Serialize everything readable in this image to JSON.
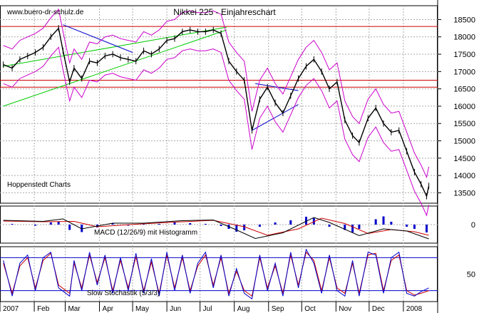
{
  "watermark": "www.buero-dr-schulz.de",
  "chart_data": {
    "type": "line",
    "title": "Nikkei 225 - Einjahreschart",
    "source_label": "Hoppenstedt Charts",
    "xlabel": "",
    "ylabel": "",
    "months": [
      "2007",
      "Feb",
      "Mar",
      "Apr",
      "May",
      "Jun",
      "Jul",
      "Aug",
      "Sep",
      "Oct",
      "Nov",
      "Dec",
      "2008"
    ],
    "grid": true,
    "colors": {
      "price": "#000000",
      "bollinger": "#cc00cc",
      "horizontal_lines": "#cc0000",
      "trend_channel": "#00cc00",
      "trend_line": "#0000cc",
      "macd_line": "#000000",
      "signal_line": "#cc0000",
      "histogram": "#0000cc"
    },
    "price_panel": {
      "ylim": [
        13200,
        18900
      ],
      "y_ticks": [
        13500,
        14000,
        14500,
        15000,
        15500,
        16000,
        16500,
        17000,
        17500,
        18000,
        18500
      ],
      "horizontal_levels": [
        18300,
        16750,
        16550
      ],
      "trend_channel_upper": [
        {
          "x": "2007-01-04",
          "y": 17150
        },
        {
          "x": "2007-07-25",
          "y": 18280
        }
      ],
      "trend_channel_lower": [
        {
          "x": "2007-01-04",
          "y": 16000
        },
        {
          "x": "2007-07-25",
          "y": 18200
        }
      ],
      "downtrend_line": [
        {
          "x": "2007-02-27",
          "y": 18350
        },
        {
          "x": "2007-05-01",
          "y": 17550
        }
      ],
      "support_line": [
        {
          "x": "2007-08-17",
          "y": 15300
        },
        {
          "x": "2007-09-28",
          "y": 16050
        }
      ],
      "resistance_line": [
        {
          "x": "2007-08-20",
          "y": 16650
        },
        {
          "x": "2007-09-28",
          "y": 16450
        }
      ],
      "series": [
        {
          "x": "2007-01-04",
          "y": 17200
        },
        {
          "x": "2007-01-12",
          "y": 17100
        },
        {
          "x": "2007-01-19",
          "y": 17350
        },
        {
          "x": "2007-01-26",
          "y": 17450
        },
        {
          "x": "2007-02-02",
          "y": 17550
        },
        {
          "x": "2007-02-09",
          "y": 17700
        },
        {
          "x": "2007-02-16",
          "y": 18000
        },
        {
          "x": "2007-02-23",
          "y": 18250
        },
        {
          "x": "2007-02-27",
          "y": 17600
        },
        {
          "x": "2007-03-05",
          "y": 16700
        },
        {
          "x": "2007-03-09",
          "y": 17100
        },
        {
          "x": "2007-03-16",
          "y": 16800
        },
        {
          "x": "2007-03-23",
          "y": 17300
        },
        {
          "x": "2007-03-30",
          "y": 17250
        },
        {
          "x": "2007-04-06",
          "y": 17450
        },
        {
          "x": "2007-04-13",
          "y": 17500
        },
        {
          "x": "2007-04-20",
          "y": 17400
        },
        {
          "x": "2007-04-27",
          "y": 17350
        },
        {
          "x": "2007-05-04",
          "y": 17300
        },
        {
          "x": "2007-05-11",
          "y": 17600
        },
        {
          "x": "2007-05-18",
          "y": 17500
        },
        {
          "x": "2007-05-25",
          "y": 17650
        },
        {
          "x": "2007-06-01",
          "y": 17900
        },
        {
          "x": "2007-06-08",
          "y": 17950
        },
        {
          "x": "2007-06-15",
          "y": 18150
        },
        {
          "x": "2007-06-22",
          "y": 18200
        },
        {
          "x": "2007-06-29",
          "y": 18150
        },
        {
          "x": "2007-07-06",
          "y": 18150
        },
        {
          "x": "2007-07-13",
          "y": 18200
        },
        {
          "x": "2007-07-20",
          "y": 18100
        },
        {
          "x": "2007-07-27",
          "y": 17300
        },
        {
          "x": "2007-08-03",
          "y": 17000
        },
        {
          "x": "2007-08-10",
          "y": 16750
        },
        {
          "x": "2007-08-17",
          "y": 15300
        },
        {
          "x": "2007-08-24",
          "y": 16200
        },
        {
          "x": "2007-08-31",
          "y": 16550
        },
        {
          "x": "2007-09-07",
          "y": 16100
        },
        {
          "x": "2007-09-14",
          "y": 15800
        },
        {
          "x": "2007-09-21",
          "y": 16300
        },
        {
          "x": "2007-09-28",
          "y": 16800
        },
        {
          "x": "2007-10-05",
          "y": 17150
        },
        {
          "x": "2007-10-12",
          "y": 17350
        },
        {
          "x": "2007-10-19",
          "y": 17000
        },
        {
          "x": "2007-10-26",
          "y": 16500
        },
        {
          "x": "2007-11-02",
          "y": 16700
        },
        {
          "x": "2007-11-09",
          "y": 15600
        },
        {
          "x": "2007-11-16",
          "y": 15150
        },
        {
          "x": "2007-11-22",
          "y": 14950
        },
        {
          "x": "2007-11-30",
          "y": 15650
        },
        {
          "x": "2007-12-07",
          "y": 15950
        },
        {
          "x": "2007-12-14",
          "y": 15500
        },
        {
          "x": "2007-12-21",
          "y": 15250
        },
        {
          "x": "2007-12-28",
          "y": 15300
        },
        {
          "x": "2008-01-04",
          "y": 14700
        },
        {
          "x": "2008-01-11",
          "y": 14100
        },
        {
          "x": "2008-01-17",
          "y": 13750
        },
        {
          "x": "2008-01-22",
          "y": 13400
        },
        {
          "x": "2008-01-24",
          "y": 13700
        }
      ]
    },
    "macd_panel": {
      "label": "MACD (12/26/9) mit Histogramm",
      "y_ticks": [
        0
      ],
      "ylim": [
        -520,
        520
      ],
      "macd": [
        {
          "x": "2007-01-04",
          "y": 120
        },
        {
          "x": "2007-02-09",
          "y": 90
        },
        {
          "x": "2007-02-27",
          "y": 160
        },
        {
          "x": "2007-03-16",
          "y": -120
        },
        {
          "x": "2007-04-13",
          "y": 40
        },
        {
          "x": "2007-05-11",
          "y": 40
        },
        {
          "x": "2007-06-15",
          "y": 110
        },
        {
          "x": "2007-07-13",
          "y": 130
        },
        {
          "x": "2007-08-03",
          "y": -150
        },
        {
          "x": "2007-08-20",
          "y": -390
        },
        {
          "x": "2007-09-14",
          "y": -230
        },
        {
          "x": "2007-10-12",
          "y": 200
        },
        {
          "x": "2007-10-26",
          "y": 60
        },
        {
          "x": "2007-11-22",
          "y": -310
        },
        {
          "x": "2007-12-14",
          "y": -120
        },
        {
          "x": "2008-01-04",
          "y": -180
        },
        {
          "x": "2008-01-24",
          "y": -400
        }
      ],
      "signal": [
        {
          "x": "2007-01-04",
          "y": 100
        },
        {
          "x": "2007-02-09",
          "y": 80
        },
        {
          "x": "2007-03-09",
          "y": 90
        },
        {
          "x": "2007-03-30",
          "y": -60
        },
        {
          "x": "2007-05-04",
          "y": 10
        },
        {
          "x": "2007-06-08",
          "y": 70
        },
        {
          "x": "2007-07-13",
          "y": 120
        },
        {
          "x": "2007-08-10",
          "y": -60
        },
        {
          "x": "2007-08-31",
          "y": -300
        },
        {
          "x": "2007-09-28",
          "y": -120
        },
        {
          "x": "2007-10-19",
          "y": 180
        },
        {
          "x": "2007-11-09",
          "y": 30
        },
        {
          "x": "2007-11-30",
          "y": -250
        },
        {
          "x": "2007-12-21",
          "y": -140
        },
        {
          "x": "2008-01-11",
          "y": -200
        },
        {
          "x": "2008-01-24",
          "y": -300
        }
      ],
      "histogram": [
        {
          "x": "2007-01-12",
          "y": 20
        },
        {
          "x": "2007-02-02",
          "y": -30
        },
        {
          "x": "2007-02-16",
          "y": 60
        },
        {
          "x": "2007-02-23",
          "y": 90
        },
        {
          "x": "2007-03-05",
          "y": -150
        },
        {
          "x": "2007-03-16",
          "y": -210
        },
        {
          "x": "2007-03-30",
          "y": -80
        },
        {
          "x": "2007-04-13",
          "y": 40
        },
        {
          "x": "2007-04-27",
          "y": -30
        },
        {
          "x": "2007-05-11",
          "y": 30
        },
        {
          "x": "2007-05-25",
          "y": 20
        },
        {
          "x": "2007-06-08",
          "y": 60
        },
        {
          "x": "2007-06-22",
          "y": 40
        },
        {
          "x": "2007-07-06",
          "y": 20
        },
        {
          "x": "2007-07-20",
          "y": -40
        },
        {
          "x": "2007-07-27",
          "y": -120
        },
        {
          "x": "2007-08-03",
          "y": -200
        },
        {
          "x": "2007-08-10",
          "y": -160
        },
        {
          "x": "2007-08-24",
          "y": -60
        },
        {
          "x": "2007-09-07",
          "y": 60
        },
        {
          "x": "2007-09-21",
          "y": 120
        },
        {
          "x": "2007-10-05",
          "y": 220
        },
        {
          "x": "2007-10-12",
          "y": 180
        },
        {
          "x": "2007-10-26",
          "y": -60
        },
        {
          "x": "2007-11-09",
          "y": -150
        },
        {
          "x": "2007-11-16",
          "y": -220
        },
        {
          "x": "2007-11-22",
          "y": -120
        },
        {
          "x": "2007-12-07",
          "y": 150
        },
        {
          "x": "2007-12-14",
          "y": 230
        },
        {
          "x": "2007-12-21",
          "y": 80
        },
        {
          "x": "2008-01-04",
          "y": -60
        },
        {
          "x": "2008-01-11",
          "y": -120
        },
        {
          "x": "2008-01-22",
          "y": -220
        }
      ]
    },
    "stochastic_panel": {
      "label": "Slow Stochastik (5/3/3)",
      "y_ticks": [
        50
      ],
      "ylim": [
        0,
        100
      ],
      "reference_levels": [
        80,
        20
      ],
      "k": [
        {
          "x": "2007-01-04",
          "y": 75
        },
        {
          "x": "2007-01-12",
          "y": 10
        },
        {
          "x": "2007-01-19",
          "y": 70
        },
        {
          "x": "2007-01-26",
          "y": 85
        },
        {
          "x": "2007-02-02",
          "y": 20
        },
        {
          "x": "2007-02-09",
          "y": 80
        },
        {
          "x": "2007-02-16",
          "y": 90
        },
        {
          "x": "2007-02-23",
          "y": 25
        },
        {
          "x": "2007-03-05",
          "y": 10
        },
        {
          "x": "2007-03-09",
          "y": 75
        },
        {
          "x": "2007-03-16",
          "y": 20
        },
        {
          "x": "2007-03-23",
          "y": 90
        },
        {
          "x": "2007-03-30",
          "y": 30
        },
        {
          "x": "2007-04-06",
          "y": 85
        },
        {
          "x": "2007-04-13",
          "y": 15
        },
        {
          "x": "2007-04-20",
          "y": 80
        },
        {
          "x": "2007-04-27",
          "y": 20
        },
        {
          "x": "2007-05-04",
          "y": 88
        },
        {
          "x": "2007-05-11",
          "y": 15
        },
        {
          "x": "2007-05-18",
          "y": 78
        },
        {
          "x": "2007-05-25",
          "y": 10
        },
        {
          "x": "2007-06-01",
          "y": 90
        },
        {
          "x": "2007-06-08",
          "y": 20
        },
        {
          "x": "2007-06-15",
          "y": 85
        },
        {
          "x": "2007-06-22",
          "y": 15
        },
        {
          "x": "2007-06-29",
          "y": 70
        },
        {
          "x": "2007-07-06",
          "y": 90
        },
        {
          "x": "2007-07-13",
          "y": 25
        },
        {
          "x": "2007-07-20",
          "y": 85
        },
        {
          "x": "2007-07-27",
          "y": 10
        },
        {
          "x": "2007-08-03",
          "y": 60
        },
        {
          "x": "2007-08-10",
          "y": 15
        },
        {
          "x": "2007-08-17",
          "y": 5
        },
        {
          "x": "2007-08-24",
          "y": 85
        },
        {
          "x": "2007-08-31",
          "y": 20
        },
        {
          "x": "2007-09-07",
          "y": 70
        },
        {
          "x": "2007-09-14",
          "y": 10
        },
        {
          "x": "2007-09-21",
          "y": 90
        },
        {
          "x": "2007-09-28",
          "y": 25
        },
        {
          "x": "2007-10-05",
          "y": 95
        },
        {
          "x": "2007-10-12",
          "y": 70
        },
        {
          "x": "2007-10-19",
          "y": 15
        },
        {
          "x": "2007-10-26",
          "y": 85
        },
        {
          "x": "2007-11-02",
          "y": 20
        },
        {
          "x": "2007-11-09",
          "y": 10
        },
        {
          "x": "2007-11-16",
          "y": 75
        },
        {
          "x": "2007-11-22",
          "y": 10
        },
        {
          "x": "2007-11-30",
          "y": 90
        },
        {
          "x": "2007-12-07",
          "y": 85
        },
        {
          "x": "2007-12-14",
          "y": 15
        },
        {
          "x": "2007-12-21",
          "y": 80
        },
        {
          "x": "2007-12-28",
          "y": 90
        },
        {
          "x": "2008-01-04",
          "y": 15
        },
        {
          "x": "2008-01-11",
          "y": 10
        },
        {
          "x": "2008-01-17",
          "y": 18
        },
        {
          "x": "2008-01-24",
          "y": 25
        }
      ],
      "d": [
        {
          "x": "2007-01-04",
          "y": 70
        },
        {
          "x": "2007-01-12",
          "y": 15
        },
        {
          "x": "2007-01-19",
          "y": 65
        },
        {
          "x": "2007-01-26",
          "y": 80
        },
        {
          "x": "2007-02-02",
          "y": 25
        },
        {
          "x": "2007-02-09",
          "y": 75
        },
        {
          "x": "2007-02-16",
          "y": 88
        },
        {
          "x": "2007-02-23",
          "y": 30
        },
        {
          "x": "2007-03-05",
          "y": 15
        },
        {
          "x": "2007-03-09",
          "y": 70
        },
        {
          "x": "2007-03-16",
          "y": 25
        },
        {
          "x": "2007-03-23",
          "y": 85
        },
        {
          "x": "2007-03-30",
          "y": 35
        },
        {
          "x": "2007-04-06",
          "y": 80
        },
        {
          "x": "2007-04-13",
          "y": 20
        },
        {
          "x": "2007-04-20",
          "y": 75
        },
        {
          "x": "2007-04-27",
          "y": 25
        },
        {
          "x": "2007-05-04",
          "y": 82
        },
        {
          "x": "2007-05-11",
          "y": 20
        },
        {
          "x": "2007-05-18",
          "y": 72
        },
        {
          "x": "2007-05-25",
          "y": 15
        },
        {
          "x": "2007-06-01",
          "y": 85
        },
        {
          "x": "2007-06-08",
          "y": 25
        },
        {
          "x": "2007-06-15",
          "y": 80
        },
        {
          "x": "2007-06-22",
          "y": 20
        },
        {
          "x": "2007-06-29",
          "y": 65
        },
        {
          "x": "2007-07-06",
          "y": 85
        },
        {
          "x": "2007-07-13",
          "y": 30
        },
        {
          "x": "2007-07-20",
          "y": 80
        },
        {
          "x": "2007-07-27",
          "y": 15
        },
        {
          "x": "2007-08-03",
          "y": 55
        },
        {
          "x": "2007-08-10",
          "y": 20
        },
        {
          "x": "2007-08-17",
          "y": 10
        },
        {
          "x": "2007-08-24",
          "y": 80
        },
        {
          "x": "2007-08-31",
          "y": 25
        },
        {
          "x": "2007-09-07",
          "y": 65
        },
        {
          "x": "2007-09-14",
          "y": 15
        },
        {
          "x": "2007-09-21",
          "y": 85
        },
        {
          "x": "2007-09-28",
          "y": 30
        },
        {
          "x": "2007-10-05",
          "y": 90
        },
        {
          "x": "2007-10-12",
          "y": 75
        },
        {
          "x": "2007-10-19",
          "y": 20
        },
        {
          "x": "2007-10-26",
          "y": 80
        },
        {
          "x": "2007-11-02",
          "y": 25
        },
        {
          "x": "2007-11-09",
          "y": 15
        },
        {
          "x": "2007-11-16",
          "y": 70
        },
        {
          "x": "2007-11-22",
          "y": 15
        },
        {
          "x": "2007-11-30",
          "y": 85
        },
        {
          "x": "2007-12-07",
          "y": 88
        },
        {
          "x": "2007-12-14",
          "y": 20
        },
        {
          "x": "2007-12-21",
          "y": 75
        },
        {
          "x": "2007-12-28",
          "y": 85
        },
        {
          "x": "2008-01-04",
          "y": 20
        },
        {
          "x": "2008-01-11",
          "y": 12
        },
        {
          "x": "2008-01-17",
          "y": 15
        },
        {
          "x": "2008-01-24",
          "y": 20
        }
      ]
    }
  }
}
